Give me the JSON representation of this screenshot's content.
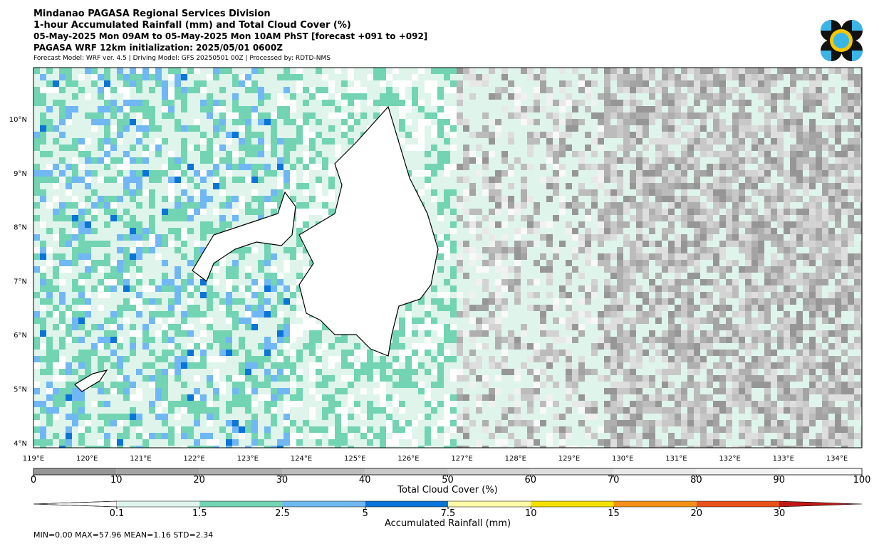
{
  "header": {
    "lines": [
      "Mindanao PAGASA Regional Services Division",
      "1-hour Accumulated Rainfall (mm) and Total Cloud Cover (%)",
      "05-May-2025 Mon 09AM to 05-May-2025 Mon 10AM PhST [forecast +091 to +092]",
      "PAGASA WRF 12km initialization: 2025/05/01 0600Z",
      "Forecast Model: WRF ver. 4.5 | Driving Model: GFS 20250501 00Z | Processed by: RDTD-NMS"
    ]
  },
  "map": {
    "lat_labels": [
      "10°N",
      "9°N",
      "8°N",
      "7°N",
      "6°N",
      "5°N",
      "4°N"
    ],
    "lon_labels": [
      "119°E",
      "120°E",
      "121°E",
      "122°E",
      "123°E",
      "124°E",
      "125°E",
      "126°E",
      "127°E",
      "128°E",
      "129°E",
      "130°E",
      "131°E",
      "132°E",
      "133°E",
      "134°E"
    ]
  },
  "cloud_colorbar": {
    "label": "Total Cloud Cover (%)",
    "ticks": [
      0,
      10,
      20,
      30,
      40,
      50,
      60,
      70,
      80,
      90,
      100
    ],
    "colors": [
      "#969696",
      "#a3a3a3",
      "#afafaf",
      "#bcbcbc",
      "#c8c8c8",
      "#d3d3d3",
      "#dedede",
      "#e8e8e8",
      "#f1f1f1",
      "#f9f9f9"
    ]
  },
  "rain_colorbar": {
    "label": "Accumulated Rainfall (mm)",
    "ticks": [
      0.1,
      1.5,
      2.5,
      5,
      7.5,
      10,
      15,
      20,
      30
    ],
    "colors": [
      "#dff5ec",
      "#72d4b2",
      "#70b7f4",
      "#0b74d8",
      "#fffaa8",
      "#f6e000",
      "#f39019",
      "#e8521b"
    ],
    "under_color": "#ffffff",
    "over_color": "#c01818"
  },
  "stats": "MIN=0.00   MAX=57.96   MEAN=1.16   STD=2.34"
}
